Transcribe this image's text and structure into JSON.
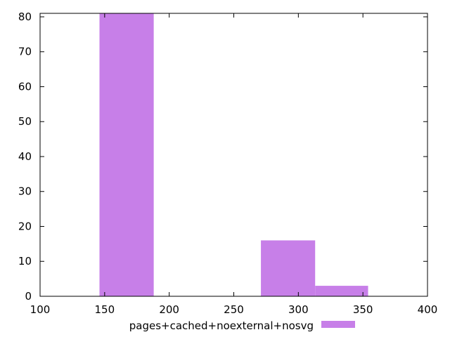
{
  "chart_data": {
    "type": "bar",
    "title": "",
    "xlabel": "",
    "ylabel": "",
    "xlim": [
      100,
      400
    ],
    "ylim": [
      0,
      81
    ],
    "x_ticks": [
      "100",
      "150",
      "200",
      "250",
      "300",
      "350",
      "400"
    ],
    "y_ticks": [
      "0",
      "10",
      "20",
      "30",
      "40",
      "50",
      "60",
      "70",
      "80"
    ],
    "grid": false,
    "legend_position": "bottom-center",
    "series": [
      {
        "name": "pages+cached+noexternal+nosvg",
        "color": "#c77fe8",
        "bins": [
          {
            "x_start": 146,
            "x_end": 188,
            "value": 81
          },
          {
            "x_start": 271,
            "x_end": 313,
            "value": 16
          },
          {
            "x_start": 313,
            "x_end": 354,
            "value": 3
          }
        ]
      }
    ]
  }
}
